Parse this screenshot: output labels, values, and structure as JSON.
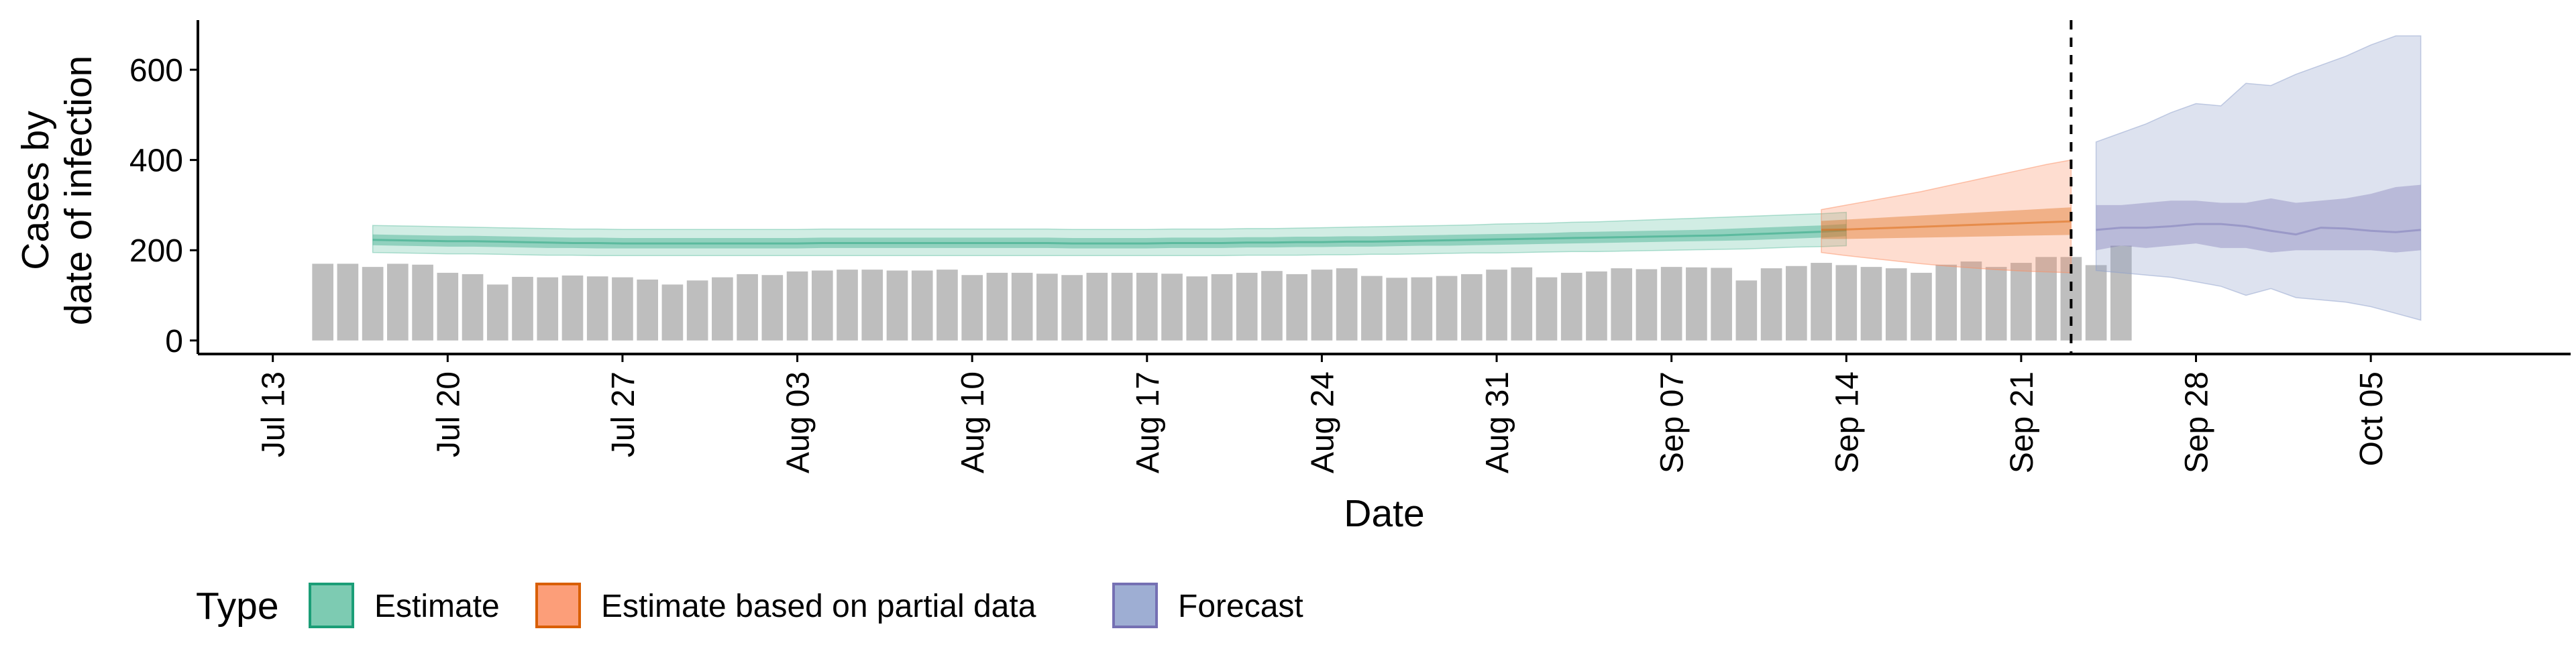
{
  "chart_data": {
    "type": "bar",
    "title": "",
    "xlabel": "Date",
    "ylabel": [
      "Cases by",
      "date of infection"
    ],
    "ylim": [
      -30,
      710
    ],
    "yticks": [
      0,
      200,
      400,
      600
    ],
    "ytick_labels": [
      "0",
      "200",
      "400",
      "600"
    ],
    "x_range": [
      "2020-07-10",
      "2020-10-13"
    ],
    "xticks": [
      "2020-07-13",
      "2020-07-20",
      "2020-07-27",
      "2020-08-03",
      "2020-08-10",
      "2020-08-17",
      "2020-08-24",
      "2020-08-31",
      "2020-09-07",
      "2020-09-14",
      "2020-09-21",
      "2020-09-28",
      "2020-10-05"
    ],
    "xtick_labels": [
      "Jul 13",
      "Jul 20",
      "Jul 27",
      "Aug 03",
      "Aug 10",
      "Aug 17",
      "Aug 24",
      "Aug 31",
      "Sep 07",
      "Sep 14",
      "Sep 21",
      "Sep 28",
      "Oct 05"
    ],
    "grid": false,
    "legend_placement": "bottom-left",
    "vline": {
      "date": "2020-09-23",
      "style": "dashed"
    },
    "bar_color": "#bebebe",
    "reported_cases": {
      "dates_start": "2020-07-15",
      "values": [
        170,
        170,
        163,
        170,
        168,
        150,
        147,
        124,
        141,
        140,
        144,
        142,
        140,
        135,
        124,
        133,
        140,
        147,
        145,
        153,
        155,
        157,
        157,
        155,
        155,
        157,
        145,
        150,
        150,
        148,
        145,
        150,
        150,
        150,
        148,
        142,
        147,
        150,
        154,
        147,
        157,
        160,
        143,
        139,
        140,
        143,
        147,
        157,
        162,
        140,
        150,
        153,
        160,
        158,
        163,
        162,
        161,
        133,
        160,
        165,
        172,
        167,
        163,
        160,
        150,
        168,
        175,
        163,
        172,
        185,
        185,
        167,
        210
      ]
    },
    "series": [
      {
        "name": "Estimate",
        "color": "#1b9e77",
        "fill": "#66c2a5",
        "dates_start": "2020-07-17",
        "median": [
          223,
          222,
          221,
          220,
          220,
          219,
          218,
          217,
          216,
          216,
          215,
          215,
          215,
          215,
          215,
          215,
          215,
          215,
          216,
          216,
          216,
          216,
          216,
          216,
          216,
          216,
          216,
          216,
          215,
          215,
          215,
          215,
          216,
          216,
          216,
          217,
          217,
          218,
          218,
          219,
          219,
          220,
          221,
          222,
          223,
          224,
          225,
          226,
          227,
          228,
          229,
          230,
          231,
          232,
          233,
          235,
          237,
          239,
          241,
          244
        ],
        "lower90": [
          195,
          194,
          193,
          192,
          192,
          191,
          190,
          189,
          189,
          188,
          188,
          188,
          188,
          188,
          188,
          188,
          188,
          188,
          188,
          188,
          188,
          188,
          188,
          188,
          188,
          188,
          188,
          188,
          188,
          188,
          188,
          188,
          188,
          188,
          188,
          189,
          189,
          189,
          190,
          190,
          191,
          191,
          192,
          193,
          194,
          194,
          195,
          196,
          197,
          197,
          198,
          199,
          200,
          201,
          202,
          203,
          205,
          207,
          208,
          210
        ],
        "upper90": [
          255,
          254,
          253,
          252,
          251,
          250,
          249,
          248,
          247,
          247,
          246,
          246,
          246,
          246,
          246,
          246,
          246,
          246,
          247,
          247,
          247,
          247,
          247,
          247,
          247,
          247,
          247,
          247,
          246,
          246,
          246,
          246,
          247,
          247,
          247,
          248,
          248,
          249,
          250,
          251,
          252,
          253,
          254,
          255,
          256,
          258,
          259,
          260,
          262,
          263,
          265,
          267,
          269,
          271,
          273,
          275,
          277,
          279,
          281,
          284
        ],
        "lower50": [
          211,
          210,
          209,
          208,
          208,
          207,
          206,
          205,
          205,
          204,
          204,
          204,
          204,
          204,
          204,
          204,
          204,
          204,
          205,
          205,
          205,
          205,
          205,
          205,
          205,
          205,
          205,
          205,
          204,
          204,
          204,
          204,
          205,
          205,
          205,
          206,
          206,
          207,
          207,
          208,
          208,
          209,
          210,
          210,
          211,
          212,
          213,
          214,
          215,
          216,
          217,
          218,
          219,
          220,
          221,
          222,
          224,
          226,
          228,
          231
        ],
        "upper50": [
          235,
          234,
          233,
          232,
          232,
          231,
          230,
          229,
          228,
          228,
          227,
          227,
          227,
          227,
          227,
          227,
          227,
          227,
          228,
          228,
          228,
          228,
          228,
          228,
          228,
          228,
          228,
          228,
          227,
          227,
          227,
          227,
          228,
          228,
          228,
          229,
          229,
          230,
          230,
          231,
          231,
          232,
          233,
          234,
          235,
          236,
          237,
          238,
          240,
          241,
          242,
          243,
          244,
          245,
          247,
          249,
          251,
          253,
          255,
          258
        ]
      },
      {
        "name": "Estimate based on partial data",
        "color": "#d95f02",
        "fill": "#fc8d62",
        "dates_start": "2020-09-13",
        "median": [
          245,
          246,
          248,
          250,
          252,
          254,
          256,
          258,
          260,
          262,
          264
        ],
        "lower90": [
          195,
          188,
          182,
          176,
          170,
          165,
          161,
          157,
          154,
          152,
          150
        ],
        "upper90": [
          290,
          300,
          310,
          320,
          330,
          342,
          354,
          366,
          378,
          390,
          400
        ],
        "lower50": [
          225,
          225,
          226,
          227,
          228,
          229,
          230,
          231,
          232,
          233,
          234
        ],
        "upper50": [
          265,
          268,
          271,
          274,
          277,
          280,
          283,
          286,
          289,
          292,
          295
        ]
      },
      {
        "name": "Forecast",
        "color": "#7570b3",
        "fill": "#8da0cb",
        "dates_start": "2020-09-24",
        "median": [
          245,
          250,
          250,
          253,
          258,
          258,
          253,
          243,
          235,
          250,
          248,
          243,
          240,
          245
        ],
        "lower90": [
          155,
          150,
          145,
          140,
          130,
          120,
          100,
          115,
          95,
          90,
          85,
          75,
          60,
          45
        ],
        "upper90": [
          440,
          460,
          480,
          505,
          525,
          520,
          570,
          565,
          590,
          610,
          630,
          655,
          675,
          675
        ],
        "lower50": [
          200,
          210,
          205,
          210,
          215,
          205,
          205,
          195,
          200,
          200,
          200,
          200,
          195,
          200
        ],
        "upper50": [
          300,
          300,
          305,
          310,
          310,
          305,
          305,
          315,
          305,
          310,
          315,
          325,
          340,
          345
        ]
      }
    ],
    "legend": {
      "title": "Type",
      "items": [
        "Estimate",
        "Estimate based on partial data",
        "Forecast"
      ]
    }
  }
}
